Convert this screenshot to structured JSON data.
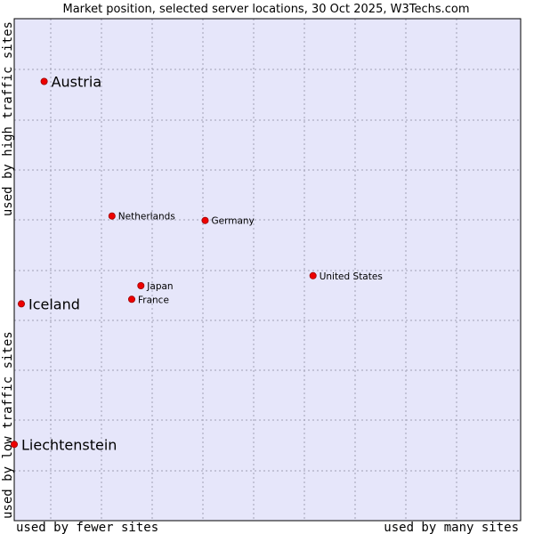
{
  "chart_data": {
    "type": "scatter",
    "title": "Market position, selected server locations, 30 Oct 2025, W3Techs.com",
    "xlabel_left": "used by fewer sites",
    "xlabel_right": "used by many sites",
    "ylabel_bottom": "used by low traffic sites",
    "ylabel_top": "used by high traffic sites",
    "xlim": [
      0,
      100
    ],
    "ylim": [
      0,
      100
    ],
    "grid": true,
    "colors": {
      "plot_bg": "#e6e6fa",
      "grid": "#a0a0b4",
      "point": "#ee0000",
      "point_edge": "#990000",
      "frame": "#000000"
    },
    "points": [
      {
        "name": "Austria",
        "x": 5.9,
        "y": 87.5,
        "size": "big"
      },
      {
        "name": "Netherlands",
        "x": 19.3,
        "y": 60.7,
        "size": "small"
      },
      {
        "name": "Germany",
        "x": 37.7,
        "y": 59.8,
        "size": "small"
      },
      {
        "name": "United States",
        "x": 59.0,
        "y": 48.8,
        "size": "small"
      },
      {
        "name": "Japan",
        "x": 25.0,
        "y": 46.8,
        "size": "small"
      },
      {
        "name": "France",
        "x": 23.2,
        "y": 44.1,
        "size": "small"
      },
      {
        "name": "Iceland",
        "x": 1.4,
        "y": 43.2,
        "size": "big"
      },
      {
        "name": "Liechtenstein",
        "x": 0.0,
        "y": 15.2,
        "size": "big"
      }
    ]
  }
}
